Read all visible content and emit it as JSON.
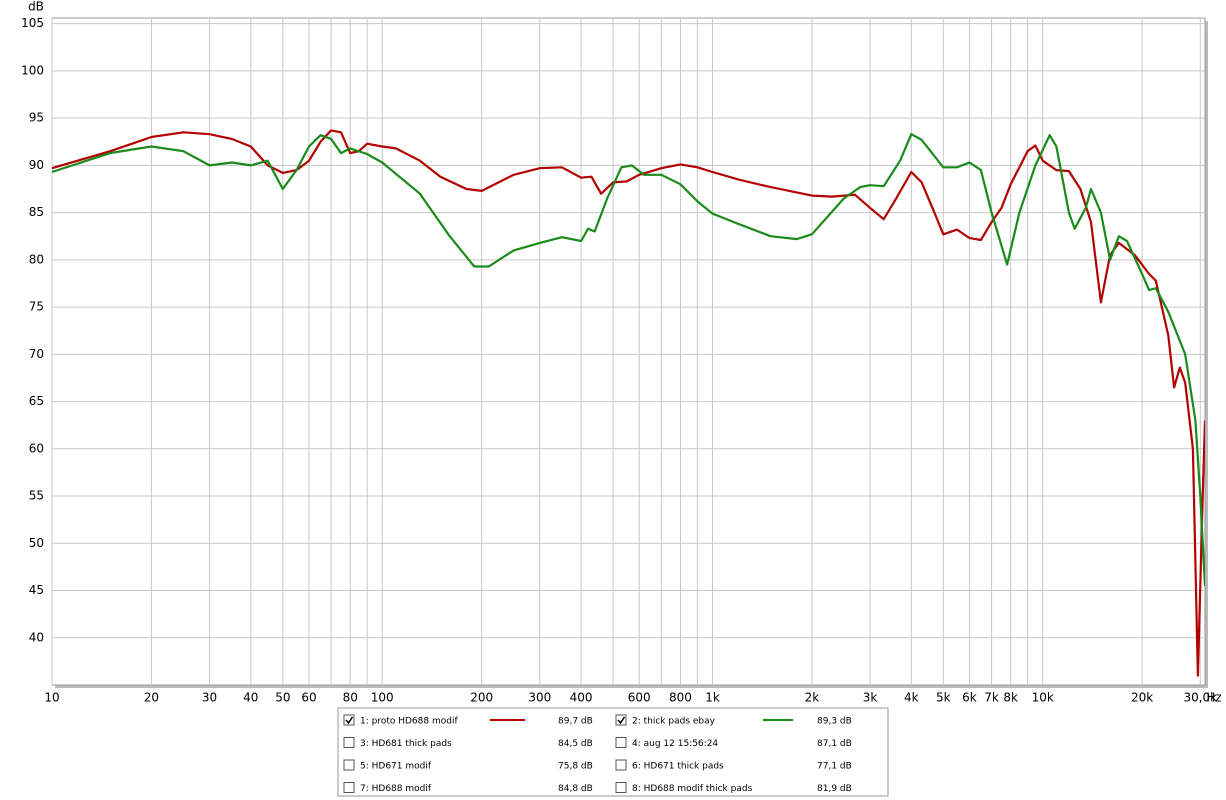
{
  "chart_data": {
    "type": "line",
    "ylabel": "dB",
    "xlabel": "Hz",
    "log_x": true,
    "grid": true,
    "xlim": [
      10,
      31000
    ],
    "ylim": [
      35,
      105.6
    ],
    "yticks": [
      40,
      45,
      50,
      55,
      60,
      65,
      70,
      75,
      80,
      85,
      90,
      95,
      100,
      105
    ],
    "xticks": [
      10,
      20,
      30,
      40,
      50,
      60,
      80,
      100,
      200,
      300,
      400,
      600,
      800,
      {
        "value": 1000,
        "label": "1k"
      },
      {
        "value": 2000,
        "label": "2k"
      },
      {
        "value": 3000,
        "label": "3k"
      },
      {
        "value": 4000,
        "label": "4k"
      },
      {
        "value": 5000,
        "label": "5k"
      },
      {
        "value": 6000,
        "label": "6k"
      },
      {
        "value": 7000,
        "label": "7k"
      },
      {
        "value": 8000,
        "label": "8k"
      },
      {
        "value": 10000,
        "label": "10k"
      },
      {
        "value": 20000,
        "label": "20k"
      },
      {
        "value": 30000,
        "label": "30,0k"
      }
    ],
    "xminor_ticks": [
      70,
      90,
      500,
      700,
      900,
      9000
    ],
    "series": [
      {
        "name": "1: proto HD688 modif",
        "color": "#b30000",
        "checked": true,
        "level": "89,7 dB",
        "x": [
          10,
          15,
          20,
          25,
          30,
          35,
          40,
          45,
          50,
          55,
          60,
          65,
          70,
          75,
          80,
          85,
          90,
          100,
          110,
          130,
          150,
          180,
          200,
          250,
          300,
          350,
          400,
          430,
          460,
          500,
          550,
          600,
          700,
          800,
          900,
          1000,
          1200,
          1500,
          2000,
          2300,
          2700,
          3000,
          3300,
          3600,
          4000,
          4300,
          4700,
          5000,
          5500,
          6000,
          6500,
          7000,
          7500,
          8000,
          9000,
          9500,
          10000,
          11000,
          12000,
          13000,
          14000,
          15000,
          16000,
          17000,
          19000,
          21000,
          22000,
          24000,
          25000,
          26000,
          27000,
          28500,
          29500,
          30500,
          31000
        ],
        "values": [
          89.7,
          91.5,
          93,
          93.5,
          93.3,
          92.8,
          92,
          90,
          89.2,
          89.5,
          90.5,
          92.5,
          93.7,
          93.5,
          91.3,
          91.5,
          92.3,
          92,
          91.8,
          90.5,
          88.8,
          87.5,
          87.3,
          89,
          89.7,
          89.8,
          88.7,
          88.8,
          87,
          88.2,
          88.3,
          89,
          89.7,
          90.1,
          89.8,
          89.3,
          88.5,
          87.7,
          86.8,
          86.7,
          86.9,
          85.5,
          84.3,
          86.5,
          89.3,
          88.2,
          85,
          82.7,
          83.2,
          82.3,
          82.1,
          84,
          85.5,
          88,
          91.5,
          92.1,
          90.5,
          89.5,
          89.4,
          87.5,
          84,
          75.5,
          80.5,
          81.8,
          80.5,
          78.5,
          77.8,
          72,
          66.5,
          68.6,
          67,
          60,
          36,
          55,
          63
        ]
      },
      {
        "name": "2: thick pads ebay",
        "color": "#1a8a1a",
        "checked": true,
        "level": "89,3 dB",
        "x": [
          10,
          15,
          20,
          25,
          30,
          35,
          40,
          45,
          50,
          55,
          60,
          65,
          70,
          75,
          80,
          90,
          100,
          130,
          160,
          190,
          210,
          250,
          300,
          350,
          400,
          420,
          440,
          480,
          530,
          570,
          620,
          700,
          800,
          900,
          1000,
          1200,
          1500,
          1800,
          2000,
          2500,
          2800,
          3000,
          3300,
          3700,
          4000,
          4300,
          5000,
          5500,
          6000,
          6500,
          7000,
          7500,
          7800,
          8500,
          9500,
          10500,
          11000,
          12000,
          12500,
          13500,
          14000,
          15000,
          16000,
          17000,
          18000,
          20000,
          21000,
          22000,
          24000,
          27000,
          29000,
          30000,
          31000
        ],
        "values": [
          89.3,
          91.3,
          92,
          91.5,
          90,
          90.3,
          90,
          90.5,
          87.5,
          89.5,
          92,
          93.2,
          92.8,
          91.3,
          91.8,
          91.2,
          90.3,
          87,
          82.5,
          79.3,
          79.3,
          81,
          81.8,
          82.4,
          82,
          83.3,
          83,
          86.5,
          89.8,
          90,
          89,
          89,
          88,
          86.2,
          84.9,
          83.8,
          82.5,
          82.2,
          82.7,
          86.5,
          87.7,
          87.9,
          87.8,
          90.5,
          93.3,
          92.7,
          89.8,
          89.8,
          90.3,
          89.5,
          85,
          81.5,
          79.5,
          85,
          90,
          93.2,
          92,
          85,
          83.3,
          85.5,
          87.5,
          85,
          80,
          82.5,
          82,
          78.5,
          76.8,
          77,
          74.5,
          70,
          63,
          55,
          45.5
        ]
      }
    ],
    "other_traces": [
      {
        "name": "3: HD681 thick pads",
        "color": "#3333bb",
        "checked": false,
        "level": "84,5 dB"
      },
      {
        "name": "4: aug 12 15:56:24",
        "color": "#990099",
        "checked": false,
        "level": "87,1 dB"
      },
      {
        "name": "5: HD671 modif",
        "color": "#008080",
        "checked": false,
        "level": "75,8 dB"
      },
      {
        "name": "6: HD671 thick pads",
        "color": "#b08000",
        "checked": false,
        "level": "77,1 dB"
      },
      {
        "name": "7: HD688 modif",
        "color": "#00a050",
        "checked": false,
        "level": "84,8 dB"
      },
      {
        "name": "8: HD688 modif thick pads",
        "color": "#6633bb",
        "checked": false,
        "level": "81,9 dB"
      }
    ]
  }
}
